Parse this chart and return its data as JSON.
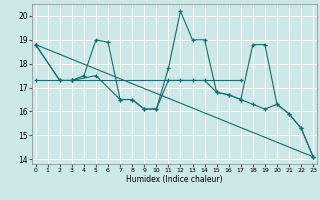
{
  "xlabel": "Humidex (Indice chaleur)",
  "background_color": "#cce8e8",
  "grid_color": "#ffffff",
  "line_color": "#1a6b6b",
  "series": [
    {
      "x": [
        0,
        2,
        3,
        4,
        5,
        6,
        7,
        8,
        9,
        10,
        11,
        12,
        13,
        14,
        15,
        16,
        17,
        18,
        19,
        20,
        21,
        22,
        23
      ],
      "y": [
        18.8,
        17.3,
        17.3,
        17.5,
        19.0,
        18.9,
        16.5,
        16.5,
        16.1,
        16.1,
        17.8,
        20.2,
        19.0,
        19.0,
        16.8,
        16.7,
        16.5,
        18.8,
        18.8,
        16.3,
        15.9,
        15.3,
        14.1
      ]
    },
    {
      "x": [
        0,
        3,
        17
      ],
      "y": [
        17.3,
        17.3,
        17.3
      ]
    },
    {
      "x": [
        0,
        23
      ],
      "y": [
        18.8,
        14.1
      ]
    },
    {
      "x": [
        0,
        2,
        3,
        5,
        7,
        8,
        9,
        10,
        11,
        12,
        13,
        14,
        15,
        16,
        17,
        18,
        19,
        20,
        21,
        22,
        23
      ],
      "y": [
        18.8,
        17.3,
        17.3,
        17.5,
        16.5,
        16.5,
        16.1,
        16.1,
        17.3,
        17.3,
        17.3,
        17.3,
        16.8,
        16.7,
        16.5,
        16.3,
        16.1,
        16.3,
        15.9,
        15.3,
        14.1
      ]
    }
  ],
  "xlim": [
    -0.3,
    23.3
  ],
  "ylim": [
    13.8,
    20.5
  ],
  "yticks": [
    14,
    15,
    16,
    17,
    18,
    19,
    20
  ],
  "xticks": [
    0,
    1,
    2,
    3,
    4,
    5,
    6,
    7,
    8,
    9,
    10,
    11,
    12,
    13,
    14,
    15,
    16,
    17,
    18,
    19,
    20,
    21,
    22,
    23
  ]
}
